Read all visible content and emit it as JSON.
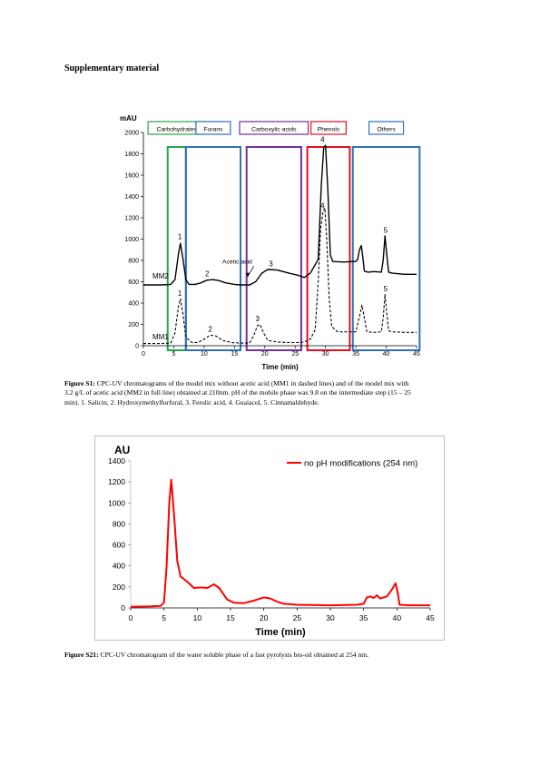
{
  "heading": "Supplementary material",
  "figure1": {
    "label": "Figure S1:",
    "caption_lines": [
      " CPC-UV chromatograms of the model mix without acetic acid (MM1 in dashed lines) and of the model mix with",
      "3.2 g/L of acetic acid (MM2 in full line) obtained at 210nm. pH of the mobile phase was 9.8 on the intermediate step (15 – 25",
      "min). 1. Salicin, 2. Hydroxymethylfurfural, 3. Ferulic acid, 4. Guaiacol, 5. Cinnamaldehyde."
    ]
  },
  "figure2": {
    "label": "Figure S21:",
    "caption": " CPC-UV chromatogram of the water soluble phase of a fast pyrolysis bio-oil obtained at 254 nm."
  },
  "chart_data": [
    {
      "type": "line",
      "ylabel": "mAU",
      "xlabel": "Time (min)",
      "xlim": [
        0,
        45
      ],
      "ylim": [
        0,
        2000
      ],
      "xticks": [
        0,
        5,
        10,
        15,
        20,
        25,
        30,
        35,
        40,
        45
      ],
      "yticks": [
        0,
        200,
        400,
        600,
        800,
        1000,
        1200,
        1400,
        1600,
        1800,
        2000
      ],
      "regions": [
        {
          "label": "Carbohydrates",
          "x0": 4,
          "x1": 7,
          "color": "#1fa84a"
        },
        {
          "label": "Furans",
          "x0": 7,
          "x1": 16,
          "color": "#2f6fc0"
        },
        {
          "label": "Carboxylic acids",
          "x0": 17,
          "x1": 26,
          "color": "#7030a0"
        },
        {
          "label": "Phenols",
          "x0": 27,
          "x1": 34,
          "color": "#e01020"
        },
        {
          "label": "Others",
          "x0": 34.5,
          "x1": 45.5,
          "color": "#2f6fc0"
        }
      ],
      "series": [
        {
          "name": "MM2",
          "style": "solid",
          "points": [
            [
              0,
              570
            ],
            [
              3,
              570
            ],
            [
              4.5,
              575
            ],
            [
              5.2,
              620
            ],
            [
              5.8,
              870
            ],
            [
              6.1,
              960
            ],
            [
              6.5,
              820
            ],
            [
              7,
              620
            ],
            [
              7.5,
              575
            ],
            [
              8.5,
              575
            ],
            [
              9.5,
              590
            ],
            [
              10.5,
              615
            ],
            [
              11.5,
              620
            ],
            [
              12.5,
              610
            ],
            [
              13.5,
              590
            ],
            [
              15,
              575
            ],
            [
              16,
              570
            ],
            [
              17.5,
              570
            ],
            [
              18.5,
              600
            ],
            [
              19.5,
              680
            ],
            [
              20.5,
              715
            ],
            [
              22,
              710
            ],
            [
              24,
              680
            ],
            [
              25.5,
              660
            ],
            [
              26.5,
              640
            ],
            [
              27.5,
              680
            ],
            [
              28.3,
              760
            ],
            [
              28.8,
              810
            ],
            [
              29.3,
              1500
            ],
            [
              29.7,
              1860
            ],
            [
              30,
              1880
            ],
            [
              30.4,
              1450
            ],
            [
              30.8,
              850
            ],
            [
              31.2,
              790
            ],
            [
              33,
              785
            ],
            [
              34.5,
              790
            ],
            [
              35,
              790
            ],
            [
              35.3,
              810
            ],
            [
              35.6,
              900
            ],
            [
              35.9,
              940
            ],
            [
              36.1,
              850
            ],
            [
              36.4,
              700
            ],
            [
              37,
              690
            ],
            [
              38,
              695
            ],
            [
              39.2,
              690
            ],
            [
              39.5,
              800
            ],
            [
              39.8,
              1030
            ],
            [
              40.1,
              850
            ],
            [
              40.4,
              690
            ],
            [
              41,
              680
            ],
            [
              43,
              670
            ],
            [
              45,
              670
            ]
          ]
        },
        {
          "name": "MM1",
          "style": "dashed",
          "points": [
            [
              0,
              20
            ],
            [
              3,
              20
            ],
            [
              4.5,
              25
            ],
            [
              5.2,
              120
            ],
            [
              5.8,
              380
            ],
            [
              6.1,
              440
            ],
            [
              6.5,
              300
            ],
            [
              7,
              80
            ],
            [
              8,
              30
            ],
            [
              9,
              30
            ],
            [
              10,
              60
            ],
            [
              11,
              100
            ],
            [
              12,
              90
            ],
            [
              13,
              50
            ],
            [
              14.5,
              30
            ],
            [
              16,
              25
            ],
            [
              17.5,
              25
            ],
            [
              18.2,
              100
            ],
            [
              18.8,
              190
            ],
            [
              19.2,
              200
            ],
            [
              19.8,
              120
            ],
            [
              20.5,
              50
            ],
            [
              22,
              35
            ],
            [
              24,
              30
            ],
            [
              25.5,
              30
            ],
            [
              26.5,
              35
            ],
            [
              27.5,
              60
            ],
            [
              28.3,
              150
            ],
            [
              28.8,
              600
            ],
            [
              29.2,
              1100
            ],
            [
              29.6,
              1260
            ],
            [
              29.9,
              1290
            ],
            [
              30.2,
              1000
            ],
            [
              30.6,
              450
            ],
            [
              31,
              180
            ],
            [
              32,
              130
            ],
            [
              34,
              130
            ],
            [
              35,
              130
            ],
            [
              35.5,
              250
            ],
            [
              36,
              380
            ],
            [
              36.4,
              260
            ],
            [
              36.8,
              130
            ],
            [
              38,
              125
            ],
            [
              39.2,
              130
            ],
            [
              39.5,
              260
            ],
            [
              39.8,
              480
            ],
            [
              40.1,
              300
            ],
            [
              40.4,
              140
            ],
            [
              41,
              130
            ],
            [
              43,
              125
            ],
            [
              45,
              125
            ]
          ]
        }
      ],
      "annotations": [
        {
          "text": "1",
          "x": 6.0,
          "y": 1000
        },
        {
          "text": "2",
          "x": 10.5,
          "y": 650
        },
        {
          "text": "3",
          "x": 21.0,
          "y": 745
        },
        {
          "text": "4",
          "x": 29.5,
          "y": 1910
        },
        {
          "text": "4",
          "x": 29.5,
          "y": 1290
        },
        {
          "text": "5",
          "x": 39.9,
          "y": 1060
        },
        {
          "text": "1",
          "x": 6.0,
          "y": 470
        },
        {
          "text": "2",
          "x": 11.0,
          "y": 130
        },
        {
          "text": "3",
          "x": 18.8,
          "y": 230
        },
        {
          "text": "5",
          "x": 39.9,
          "y": 510
        },
        {
          "text": "Acetic acid",
          "x": 13.0,
          "y": 770
        },
        {
          "text": "MM2",
          "x": 1.5,
          "y": 630
        },
        {
          "text": "MM1",
          "x": 1.5,
          "y": 60
        }
      ]
    },
    {
      "type": "line",
      "ylabel": "AU",
      "xlabel": "Time (min)",
      "xlim": [
        0,
        45
      ],
      "ylim": [
        0,
        1400
      ],
      "xticks": [
        0,
        5,
        10,
        15,
        20,
        25,
        30,
        35,
        40,
        45
      ],
      "yticks": [
        0,
        200,
        400,
        600,
        800,
        1000,
        1200,
        1400
      ],
      "legend": "top-right",
      "series": [
        {
          "name": "no pH modifications (254 nm)",
          "color": "#ff0000",
          "points": [
            [
              0,
              10
            ],
            [
              3,
              15
            ],
            [
              4.5,
              20
            ],
            [
              5,
              50
            ],
            [
              5.4,
              400
            ],
            [
              5.8,
              1000
            ],
            [
              6.1,
              1220
            ],
            [
              6.5,
              900
            ],
            [
              7,
              450
            ],
            [
              7.5,
              300
            ],
            [
              8.5,
              250
            ],
            [
              9.5,
              190
            ],
            [
              10.5,
              195
            ],
            [
              11.5,
              190
            ],
            [
              12.5,
              225
            ],
            [
              13.3,
              190
            ],
            [
              14.5,
              80
            ],
            [
              15.5,
              50
            ],
            [
              17,
              45
            ],
            [
              18.5,
              70
            ],
            [
              20,
              100
            ],
            [
              21,
              90
            ],
            [
              22,
              60
            ],
            [
              23,
              40
            ],
            [
              25,
              30
            ],
            [
              30,
              25
            ],
            [
              34,
              30
            ],
            [
              35,
              40
            ],
            [
              35.5,
              100
            ],
            [
              36,
              110
            ],
            [
              36.5,
              95
            ],
            [
              37,
              120
            ],
            [
              37.5,
              90
            ],
            [
              38.5,
              110
            ],
            [
              39.3,
              180
            ],
            [
              39.8,
              235
            ],
            [
              40.1,
              150
            ],
            [
              40.4,
              30
            ],
            [
              42,
              25
            ],
            [
              45,
              25
            ]
          ]
        }
      ]
    }
  ]
}
